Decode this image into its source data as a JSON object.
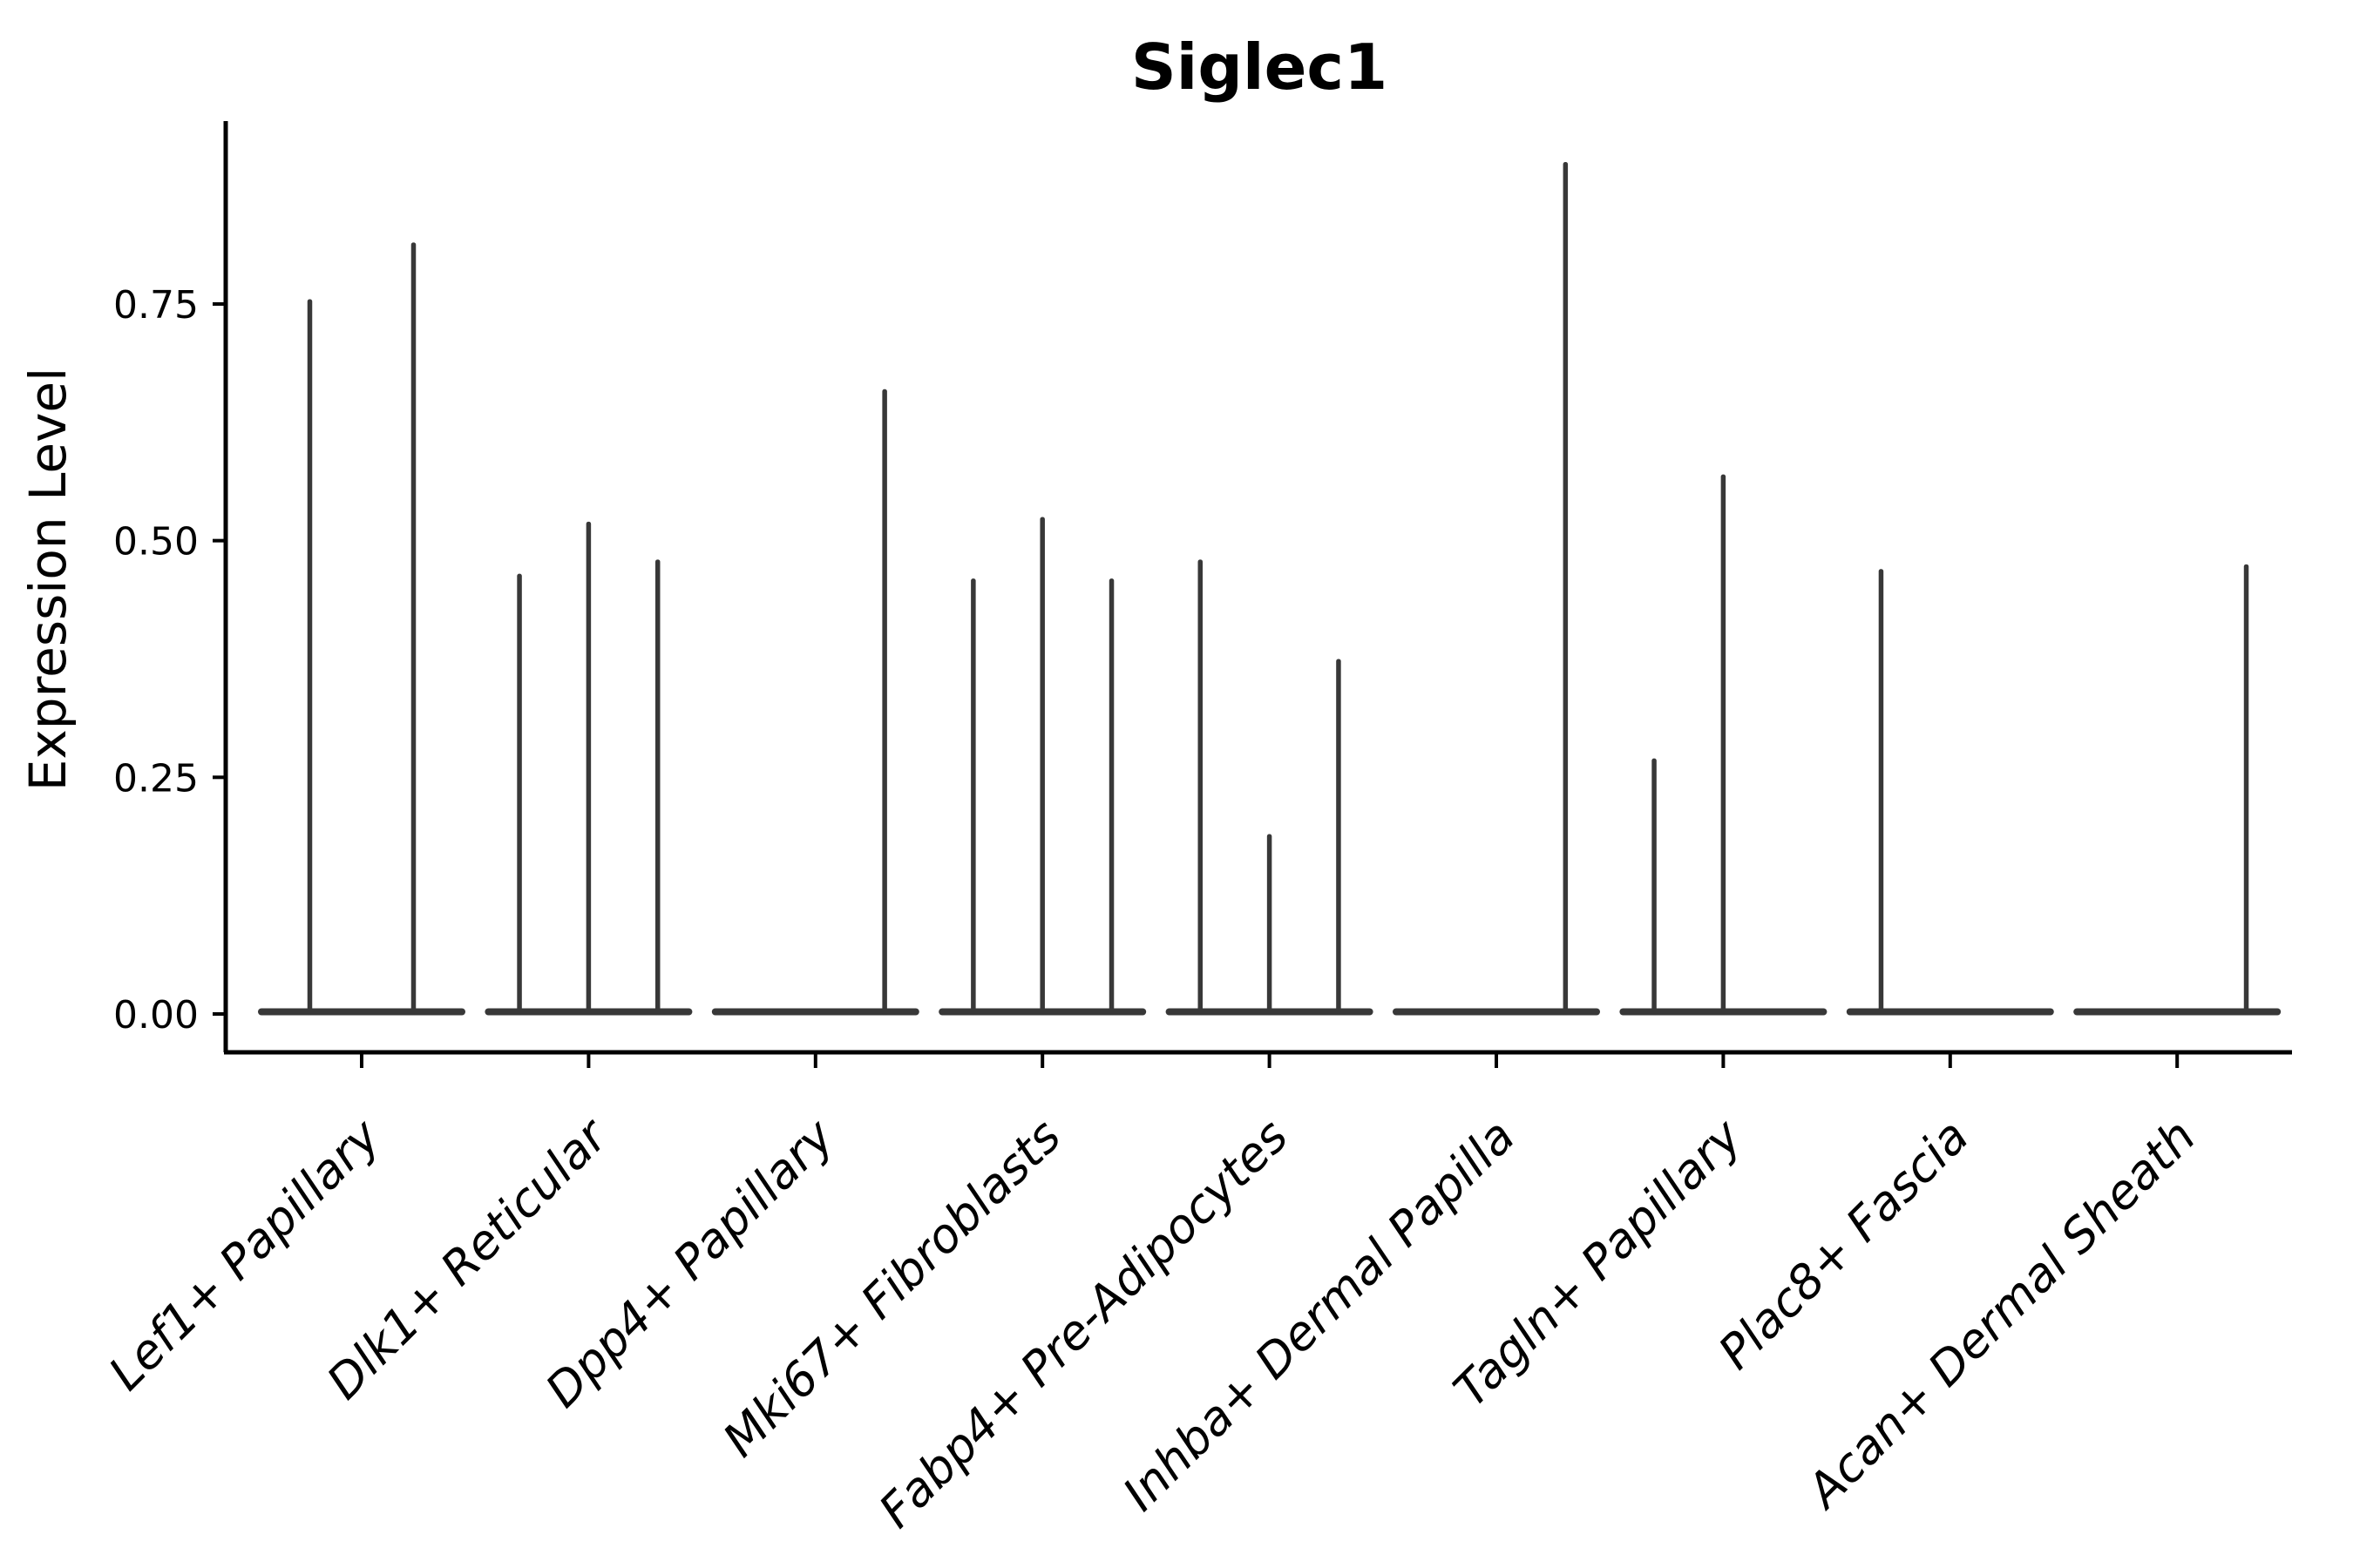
{
  "chart_data": {
    "type": "violin",
    "title": "Siglec1",
    "ylabel": "Expression Level",
    "xlabel": "",
    "ylim": [
      0,
      0.943
    ],
    "grid": false,
    "legend_position": "none",
    "x_label_rotation_deg": 45,
    "yticks": [
      {
        "value": 0.0,
        "label": "0.00"
      },
      {
        "value": 0.25,
        "label": "0.25"
      },
      {
        "value": 0.5,
        "label": "0.50"
      },
      {
        "value": 0.75,
        "label": "0.75"
      }
    ],
    "categories": [
      "Lef1+ Papillary",
      "Dlk1+ Reticular",
      "Dpp4+ Papillary",
      "Mki67+ Fibroblasts",
      "Fabp4+ Pre-Adipocytes",
      "Inhba+ Dermal Papilla",
      "Tagln+ Papillary",
      "Plac8+ Fascia",
      "Acan+ Dermal Sheath"
    ],
    "groups": [
      {
        "label": "Lef1+ Papillary",
        "violin_maxima": [
          0.755,
          0.815
        ]
      },
      {
        "label": "Dlk1+ Reticular",
        "violin_maxima": [
          0.465,
          0.52,
          0.48
        ]
      },
      {
        "label": "Dpp4+ Papillary",
        "violin_maxima": [
          0,
          0,
          0.66
        ]
      },
      {
        "label": "Mki67+ Fibroblasts",
        "violin_maxima": [
          0.46,
          0.525,
          0.46
        ]
      },
      {
        "label": "Fabp4+ Pre-Adipocytes",
        "violin_maxima": [
          0.48,
          0.19,
          0.375
        ]
      },
      {
        "label": "Inhba+ Dermal Papilla",
        "violin_maxima": [
          0,
          0,
          0.9
        ]
      },
      {
        "label": "Tagln+ Papillary",
        "violin_maxima": [
          0.27,
          0.57,
          0
        ]
      },
      {
        "label": "Plac8+ Fascia",
        "violin_maxima": [
          0.47,
          0,
          0
        ]
      },
      {
        "label": "Acan+ Dermal Sheath",
        "violin_maxima": [
          0,
          0,
          0.475
        ]
      }
    ],
    "colors": {
      "violin": "#383838",
      "axis": "#000000",
      "text": "#000000",
      "background": "#ffffff"
    }
  }
}
